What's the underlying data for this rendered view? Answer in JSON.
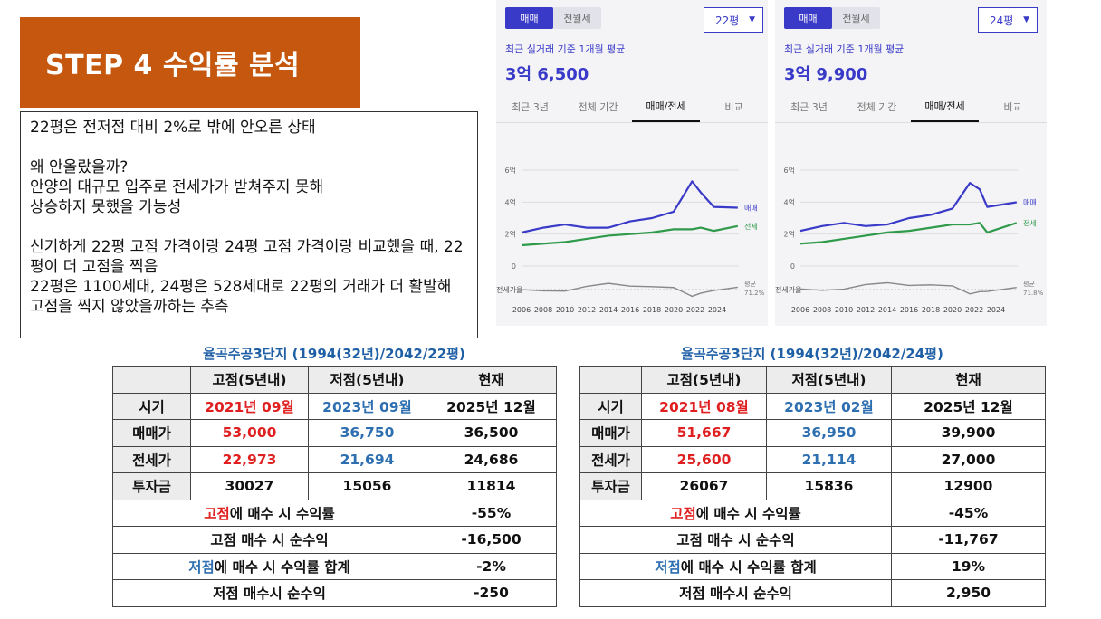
{
  "banner": {
    "title": "STEP 4 수익률 분석"
  },
  "notes": {
    "line1": "22평은 전저점 대비 2%로 밖에 안오른 상태",
    "line2": "왜 안올랐을까?\n안양의 대규모 입주로 전세가가 받쳐주지 못해\n상승하지 못했을 가능성",
    "line3": "신기하게 22평 고점 가격이랑 24평 고점 가격이랑 비교했을 때, 22평이 더 고점을 찍음\n22평은 1100세대, 24평은 528세대로 22평의 거래가 더 활발해 고점을 찍지 않았을까하는 추측"
  },
  "panels": [
    {
      "toggle": [
        "매매",
        "전월세"
      ],
      "size": "22평",
      "caption": "최근 실거래 기준 1개월 평균",
      "price": "3억 6,500",
      "tabs": [
        "최근 3년",
        "전체 기간",
        "매매/전세",
        "비교"
      ],
      "active_tab": 2,
      "y_labels": [
        "6억",
        "4억",
        "2억",
        "0"
      ],
      "legend": [
        "매매",
        "전세"
      ],
      "ratio_label": "전세가율",
      "avg_label": "평균",
      "avg_value": "71.2%",
      "years": [
        "2006",
        "2008",
        "2010",
        "2012",
        "2014",
        "2016",
        "2018",
        "2020",
        "2022",
        "2024"
      ]
    },
    {
      "toggle": [
        "매매",
        "전월세"
      ],
      "size": "24평",
      "caption": "최근 실거래 기준 1개월 평균",
      "price": "3억 9,900",
      "tabs": [
        "최근 3년",
        "전체 기간",
        "매매/전세",
        "비교"
      ],
      "active_tab": 2,
      "y_labels": [
        "6억",
        "4억",
        "2억",
        "0"
      ],
      "legend": [
        "매매",
        "전세"
      ],
      "ratio_label": "전세가율",
      "avg_label": "평균",
      "avg_value": "71.8%",
      "years": [
        "2006",
        "2008",
        "2010",
        "2012",
        "2014",
        "2016",
        "2018",
        "2020",
        "2022",
        "2024"
      ]
    }
  ],
  "chart_data": [
    {
      "type": "line",
      "title": "22평",
      "x": [
        2006,
        2008,
        2010,
        2012,
        2014,
        2016,
        2018,
        2020,
        2021.7,
        2022.5,
        2023.7,
        2025.9
      ],
      "series": [
        {
          "name": "매매",
          "values": [
            2.1,
            2.4,
            2.6,
            2.4,
            2.4,
            2.8,
            3.0,
            3.4,
            5.3,
            4.6,
            3.7,
            3.65
          ]
        },
        {
          "name": "전세",
          "values": [
            1.3,
            1.4,
            1.5,
            1.7,
            1.9,
            2.0,
            2.1,
            2.3,
            2.3,
            2.4,
            2.2,
            2.5
          ]
        }
      ],
      "ylim": [
        0,
        6
      ]
    },
    {
      "type": "line",
      "title": "24평",
      "x": [
        2006,
        2008,
        2010,
        2012,
        2014,
        2016,
        2018,
        2020,
        2021.6,
        2022.5,
        2023.2,
        2025.9
      ],
      "series": [
        {
          "name": "매매",
          "values": [
            2.2,
            2.5,
            2.7,
            2.5,
            2.6,
            3.0,
            3.2,
            3.6,
            5.2,
            4.8,
            3.7,
            3.99
          ]
        },
        {
          "name": "전세",
          "values": [
            1.4,
            1.5,
            1.7,
            1.9,
            2.1,
            2.2,
            2.4,
            2.6,
            2.6,
            2.7,
            2.1,
            2.7
          ]
        }
      ],
      "ylim": [
        0,
        6
      ]
    }
  ],
  "tables": [
    {
      "title": "율곡주공3단지 (1994(32년)/2042/22평)",
      "col_headers": [
        "고점(5년내)",
        "저점(5년내)",
        "현재"
      ],
      "rows": [
        {
          "label": "시기",
          "high": "2021년 09월",
          "low": "2023년 09월",
          "now": "2025년 12월"
        },
        {
          "label": "매매가",
          "high": "53,000",
          "low": "36,750",
          "now": "36,500"
        },
        {
          "label": "전세가",
          "high": "22,973",
          "low": "21,694",
          "now": "24,686"
        },
        {
          "label": "투자금",
          "high": "30027",
          "low": "15056",
          "now": "11814"
        }
      ],
      "summary": [
        {
          "prefix": "고점",
          "suffix": "에 매수 시 수익률",
          "value": "-55%"
        },
        {
          "text": "고점 매수 시 순수익",
          "value": "-16,500"
        },
        {
          "prefix": "저점",
          "suffix": "에 매수 시 수익률 합계",
          "value": "-2%"
        },
        {
          "text": "저점 매수시 순수익",
          "value": "-250"
        }
      ]
    },
    {
      "title": "율곡주공3단지 (1994(32년)/2042/24평)",
      "col_headers": [
        "고점(5년내)",
        "저점(5년내)",
        "현재"
      ],
      "rows": [
        {
          "label": "시기",
          "high": "2021년 08월",
          "low": "2023년 02월",
          "now": "2025년 12월"
        },
        {
          "label": "매매가",
          "high": "51,667",
          "low": "36,950",
          "now": "39,900"
        },
        {
          "label": "전세가",
          "high": "25,600",
          "low": "21,114",
          "now": "27,000"
        },
        {
          "label": "투자금",
          "high": "26067",
          "low": "15836",
          "now": "12900"
        }
      ],
      "summary": [
        {
          "prefix": "고점",
          "suffix": "에 매수 시 수익률",
          "value": "-45%"
        },
        {
          "text": "고점 매수 시 순수익",
          "value": "-11,767"
        },
        {
          "prefix": "저점",
          "suffix": "에 매수 시 수익률 합계",
          "value": "19%"
        },
        {
          "text": "저점 매수시 순수익",
          "value": "2,950"
        }
      ]
    }
  ],
  "colors": {
    "banner": "#c5570f",
    "accent": "#3a3ac8",
    "sale_line": "#3a3ac8",
    "jeonse_line": "#2e9a4a",
    "ratio_line": "#888888",
    "high": "#e02020",
    "low": "#2d6fb0"
  }
}
